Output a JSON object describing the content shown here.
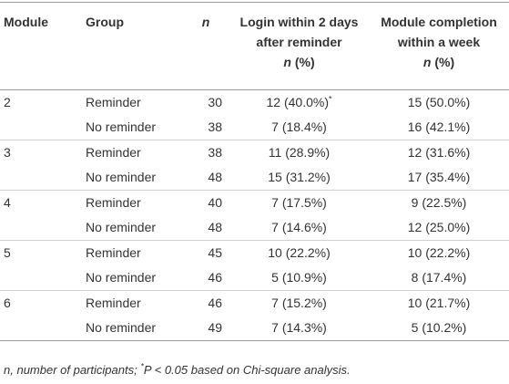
{
  "table": {
    "header": [
      {
        "text": "Module"
      },
      {
        "text": "Group"
      },
      {
        "var": "n"
      },
      {
        "text": "Login within 2 days after reminder",
        "var": "n",
        "unit": "(%)"
      },
      {
        "text": "Module completion within a week",
        "var": "n",
        "unit": "(%)"
      }
    ],
    "modules": [
      {
        "module": "2",
        "rows": [
          {
            "group": "Reminder",
            "n": 30,
            "login": "12 (40.0%)",
            "login_mark": "*",
            "completion": "15 (50.0%)"
          },
          {
            "group": "No reminder",
            "n": 38,
            "login": "7 (18.4%)",
            "completion": "16 (42.1%)"
          }
        ]
      },
      {
        "module": "3",
        "rows": [
          {
            "group": "Reminder",
            "n": 38,
            "login": "11 (28.9%)",
            "completion": "12 (31.6%)"
          },
          {
            "group": "No reminder",
            "n": 48,
            "login": "15 (31.2%)",
            "completion": "17 (35.4%)"
          }
        ]
      },
      {
        "module": "4",
        "rows": [
          {
            "group": "Reminder",
            "n": 40,
            "login": "7 (17.5%)",
            "completion": "9 (22.5%)"
          },
          {
            "group": "No reminder",
            "n": 48,
            "login": "7 (14.6%)",
            "completion": "12 (25.0%)"
          }
        ]
      },
      {
        "module": "5",
        "rows": [
          {
            "group": "Reminder",
            "n": 45,
            "login": "10 (22.2%)",
            "completion": "10 (22.2%)"
          },
          {
            "group": "No reminder",
            "n": 46,
            "login": "5 (10.9%)",
            "completion": "8 (17.4%)"
          }
        ]
      },
      {
        "module": "6",
        "rows": [
          {
            "group": "Reminder",
            "n": 46,
            "login": "7 (15.2%)",
            "completion": "10 (21.7%)"
          },
          {
            "group": "No reminder",
            "n": 49,
            "login": "7 (14.3%)",
            "completion": "5 (10.2%)"
          }
        ]
      }
    ]
  },
  "footnote": {
    "var": "n",
    "text": ", number of participants; ",
    "mark": "*",
    "note": "P < 0.05 based on Chi-square analysis."
  }
}
